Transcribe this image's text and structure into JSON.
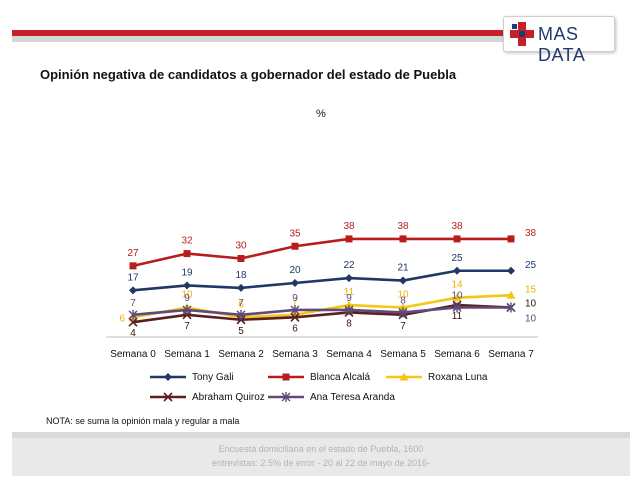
{
  "header": {
    "brand": "MAS DATA",
    "colors": {
      "red": "#c8202a",
      "navy": "#1f3b70"
    }
  },
  "title": "Opinión negativa de candidatos a gobernador del estado de Puebla",
  "unit": "%",
  "note": "NOTA: se suma la opinión mala y regular a mala",
  "footer": {
    "line1": "Encuesta domiciliaria en el estado de Puebla, 1600",
    "line2": "entrevistas: 2.5% de error - 20 al 22 de mayo de 2016-"
  },
  "chart_data": {
    "type": "line",
    "title": "Opinión negativa de candidatos a gobernador del estado de Puebla",
    "ylabel": "%",
    "categories": [
      "Semana 0",
      "Semana 1",
      "Semana 2",
      "Semana 3",
      "Semana 4",
      "Semana 5",
      "Semana 6",
      "Semana 7"
    ],
    "ylim": [
      0,
      40
    ],
    "grid": false,
    "legend_position": "bottom",
    "series": [
      {
        "name": "Tony Gali",
        "values": [
          17,
          19,
          18,
          20,
          22,
          21,
          25,
          25
        ],
        "color": "#1f3864",
        "marker": "diamond"
      },
      {
        "name": "Blanca Alcalá",
        "values": [
          27,
          32,
          30,
          35,
          38,
          38,
          38,
          38
        ],
        "color": "#b81c1c",
        "marker": "square"
      },
      {
        "name": "Roxana Luna",
        "values": [
          6,
          10,
          6,
          7,
          11,
          10,
          14,
          15
        ],
        "color": "#f5c518",
        "marker": "triangle"
      },
      {
        "name": "Abraham Quiroz",
        "values": [
          4,
          7,
          5,
          6,
          8,
          7,
          11,
          10
        ],
        "color": "#5b1f1f",
        "marker": "x"
      },
      {
        "name": "Ana Teresa Aranda",
        "values": [
          7,
          9,
          7,
          9,
          9,
          8,
          10,
          10
        ],
        "color": "#604a7b",
        "marker": "star"
      }
    ]
  }
}
